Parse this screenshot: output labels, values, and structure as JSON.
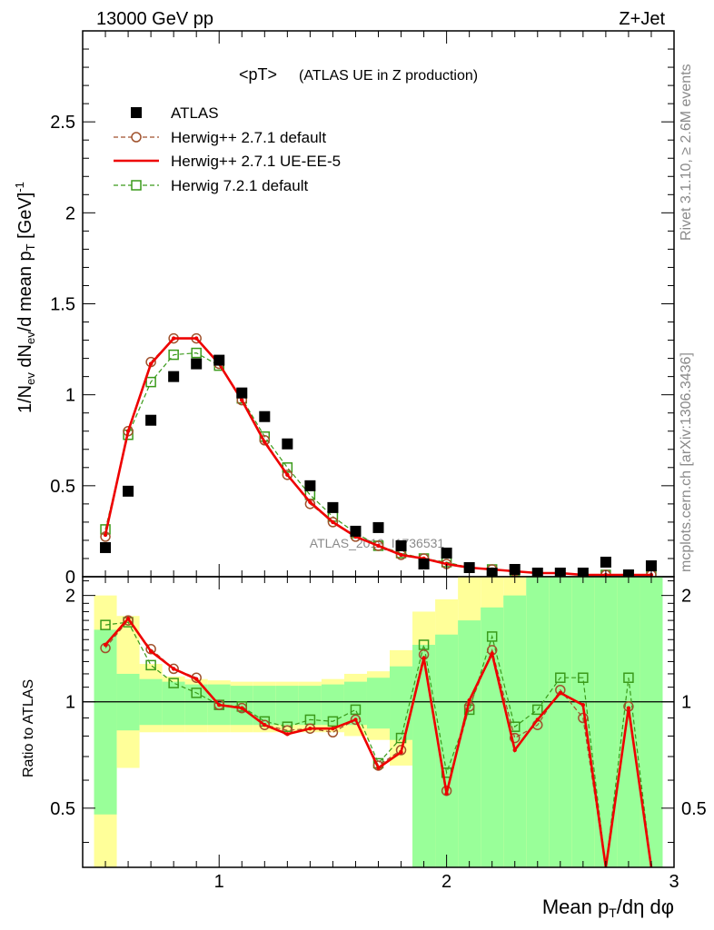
{
  "header": {
    "left": "13000 GeV pp",
    "right": "Z+Jet",
    "title_main": "<pT>",
    "title_sub": "(ATLAS UE in Z production)",
    "side_top": "Rivet 3.1.10, ≥ 2.6M events",
    "side_bottom": "mcplots.cern.ch [arXiv:1306.3436]",
    "watermark": "ATLAS_2019_I1736531"
  },
  "colors": {
    "atlas": "#000000",
    "h271_default": "#a0522d",
    "h271_ueee5": "#ee0000",
    "h721_default": "#3a9a1a",
    "band_inner": "#99ff99",
    "band_outer": "#ffff99"
  },
  "chart_data": [
    {
      "type": "scatter",
      "name": "main",
      "ylabel": "1/N_ev dN_ev/d mean p_T [GeV]^-1",
      "ylim": [
        0,
        3.0
      ],
      "xlim": [
        0.4,
        3.0
      ],
      "yticks": [
        0.5,
        1,
        1.5,
        2,
        2.5
      ],
      "y_edge_label": "0",
      "x": [
        0.5,
        0.6,
        0.7,
        0.8,
        0.9,
        1.0,
        1.1,
        1.2,
        1.3,
        1.4,
        1.5,
        1.6,
        1.7,
        1.8,
        1.9,
        2.0,
        2.1,
        2.2,
        2.3,
        2.4,
        2.5,
        2.6,
        2.7,
        2.8,
        2.9
      ],
      "series": [
        {
          "name": "ATLAS",
          "style": "marker",
          "color": "#000000",
          "values": [
            0.16,
            0.47,
            0.86,
            1.1,
            1.17,
            1.19,
            1.01,
            0.88,
            0.73,
            0.5,
            0.38,
            0.25,
            0.27,
            0.17,
            0.07,
            0.13,
            0.05,
            0.02,
            0.04,
            0.02,
            0.02,
            0.02,
            0.08,
            0.01,
            0.06
          ]
        },
        {
          "name": "Herwig++ 2.7.1 default",
          "style": "dashed-circle",
          "color": "#a0522d",
          "values": [
            0.22,
            0.8,
            1.18,
            1.31,
            1.31,
            1.17,
            0.97,
            0.75,
            0.56,
            0.4,
            0.3,
            0.22,
            0.17,
            0.12,
            0.1,
            0.07,
            0.05,
            0.04,
            0.03,
            0.02,
            0.02,
            0.01,
            0.01,
            0.01,
            0.01
          ]
        },
        {
          "name": "Herwig++ 2.7.1 UE-EE-5",
          "style": "solid",
          "color": "#ee0000",
          "values": [
            0.23,
            0.8,
            1.17,
            1.31,
            1.31,
            1.17,
            0.97,
            0.74,
            0.56,
            0.41,
            0.3,
            0.22,
            0.17,
            0.12,
            0.1,
            0.07,
            0.05,
            0.04,
            0.03,
            0.02,
            0.02,
            0.01,
            0.01,
            0.01,
            0.01
          ]
        },
        {
          "name": "Herwig 7.2.1 default",
          "style": "dashed-square",
          "color": "#3a9a1a",
          "values": [
            0.26,
            0.78,
            1.07,
            1.22,
            1.23,
            1.16,
            0.98,
            0.77,
            0.6,
            0.45,
            0.33,
            0.24,
            0.17,
            0.13,
            0.1,
            0.08,
            0.05,
            0.04,
            0.03,
            0.02,
            0.02,
            0.01,
            0.01,
            0.01,
            0.01
          ]
        }
      ]
    },
    {
      "type": "line",
      "name": "ratio",
      "ylabel": "Ratio to ATLAS",
      "xlabel": "Mean p_T/dη dφ",
      "ylim": [
        0.34,
        2.26
      ],
      "xlim": [
        0.4,
        3.0
      ],
      "xticks": [
        1,
        2,
        3
      ],
      "yticks": [
        0.5,
        1,
        2
      ],
      "bin_edges": [
        0.45,
        0.55,
        0.65,
        0.75,
        0.85,
        0.95,
        1.05,
        1.15,
        1.25,
        1.35,
        1.45,
        1.55,
        1.65,
        1.75,
        1.85,
        1.95,
        2.05,
        2.15,
        2.25,
        2.35,
        2.45,
        2.55,
        2.65,
        2.75,
        2.85,
        2.95
      ],
      "band_inner_lo": [
        0.48,
        0.83,
        0.86,
        0.86,
        0.86,
        0.86,
        0.86,
        0.86,
        0.86,
        0.86,
        0.86,
        0.86,
        0.84,
        0.78,
        0.34,
        0.34,
        0.34,
        0.34,
        0.34,
        0.34,
        0.34,
        0.34,
        0.34,
        0.34,
        0.34
      ],
      "band_inner_hi": [
        1.6,
        1.2,
        1.16,
        1.14,
        1.12,
        1.12,
        1.11,
        1.11,
        1.11,
        1.11,
        1.12,
        1.14,
        1.17,
        1.26,
        1.45,
        1.55,
        1.7,
        1.85,
        2.0,
        2.26,
        2.26,
        2.26,
        2.26,
        2.26,
        2.26
      ],
      "band_outer_lo": [
        0.34,
        0.65,
        0.82,
        0.82,
        0.82,
        0.82,
        0.82,
        0.82,
        0.82,
        0.82,
        0.82,
        0.8,
        0.78,
        0.66,
        0.34,
        0.34,
        0.34,
        0.34,
        0.34,
        0.34,
        0.34,
        0.34,
        0.34,
        0.34,
        0.34
      ],
      "band_outer_hi": [
        2.0,
        1.75,
        1.28,
        1.18,
        1.16,
        1.15,
        1.14,
        1.14,
        1.14,
        1.14,
        1.16,
        1.2,
        1.22,
        1.4,
        1.8,
        1.95,
        2.26,
        2.26,
        2.26,
        2.26,
        2.26,
        2.26,
        2.26,
        2.26,
        1.75
      ],
      "x": [
        0.5,
        0.6,
        0.7,
        0.8,
        0.9,
        1.0,
        1.1,
        1.2,
        1.3,
        1.4,
        1.5,
        1.6,
        1.7,
        1.8,
        1.9,
        2.0,
        2.1,
        2.2,
        2.3,
        2.4,
        2.5,
        2.6,
        2.7,
        2.8,
        2.9
      ],
      "series": [
        {
          "name": "Herwig++ 2.7.1 default",
          "style": "dashed-circle",
          "color": "#a0522d",
          "values": [
            1.42,
            1.7,
            1.41,
            1.24,
            1.17,
            0.98,
            0.96,
            0.86,
            0.83,
            0.84,
            0.82,
            0.89,
            0.66,
            0.73,
            1.36,
            0.56,
            0.97,
            1.4,
            0.79,
            0.86,
            1.08,
            0.9,
            0.25,
            0.97,
            0.25
          ]
        },
        {
          "name": "Herwig++ 2.7.1 UE-EE-5",
          "style": "solid",
          "color": "#ee0000",
          "values": [
            1.45,
            1.72,
            1.39,
            1.24,
            1.16,
            0.98,
            0.96,
            0.86,
            0.81,
            0.84,
            0.84,
            0.89,
            0.65,
            0.72,
            1.33,
            0.55,
            1.01,
            1.37,
            0.73,
            0.89,
            1.06,
            0.98,
            0.25,
            0.96,
            0.25
          ]
        },
        {
          "name": "Herwig 7.2.1 default",
          "style": "dashed-square",
          "color": "#3a9a1a",
          "values": [
            1.65,
            1.68,
            1.27,
            1.13,
            1.06,
            0.98,
            0.97,
            0.88,
            0.85,
            0.89,
            0.88,
            0.95,
            0.67,
            0.79,
            1.45,
            0.63,
            0.95,
            1.53,
            0.85,
            0.95,
            1.17,
            1.17,
            0.25,
            1.17,
            0.25
          ]
        }
      ]
    }
  ]
}
